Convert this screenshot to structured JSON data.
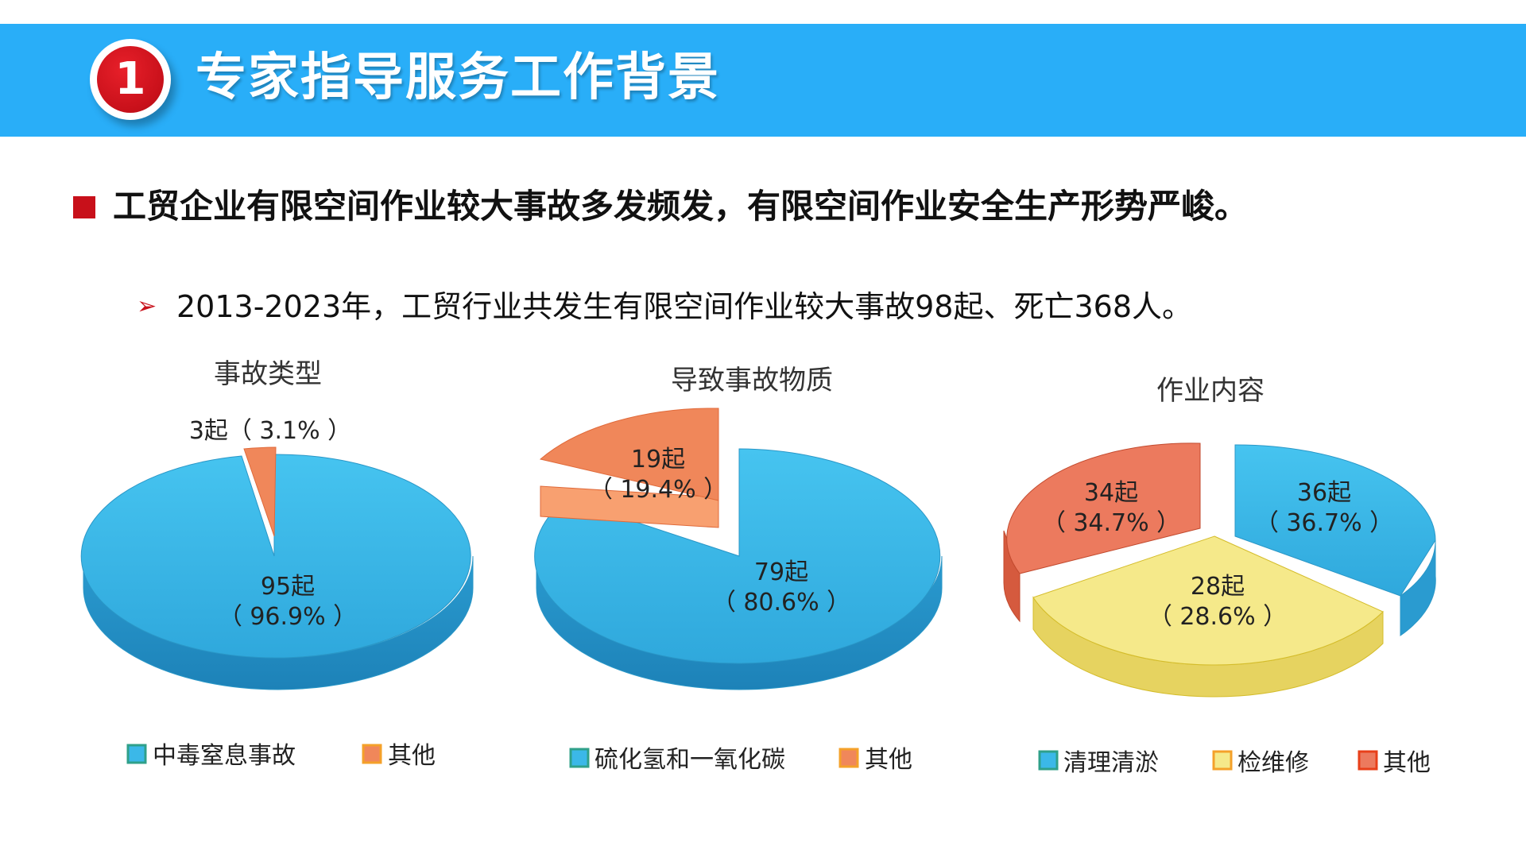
{
  "banner": {
    "number": "1",
    "title": "专家指导服务工作背景",
    "color": "#29aef8"
  },
  "headline": "工贸企业有限空间作业较大事故多发频发，有限空间作业安全生产形势严峻。",
  "subline": "2013-2023年，工贸行业共发生有限空间作业较大事故98起、死亡368人。",
  "chart_data": [
    {
      "type": "pie",
      "title": "事故类型",
      "legend_position": "bottom",
      "slices": [
        {
          "name": "中毒窒息事故",
          "value": 95,
          "label_count": "95起",
          "label_pct": "（ 96.9% ）",
          "color": "#3bb8e8"
        },
        {
          "name": "其他",
          "value": 3,
          "label_count": "3起（ 3.1% ）",
          "label_pct": "",
          "color": "#f0875a"
        }
      ]
    },
    {
      "type": "pie",
      "title": "导致事故物质",
      "legend_position": "bottom",
      "slices": [
        {
          "name": "硫化氢和一氧化碳",
          "value": 79,
          "label_count": "79起",
          "label_pct": "（ 80.6% ）",
          "color": "#3bb8e8"
        },
        {
          "name": "其他",
          "value": 19,
          "label_count": "19起",
          "label_pct": "（ 19.4% ）",
          "color": "#f0875a"
        }
      ]
    },
    {
      "type": "pie",
      "title": "作业内容",
      "legend_position": "bottom",
      "slices": [
        {
          "name": "清理清淤",
          "value": 36,
          "label_count": "36起",
          "label_pct": "（ 36.7% ）",
          "color": "#3bb8e8"
        },
        {
          "name": "检维修",
          "value": 28,
          "label_count": "28起",
          "label_pct": "（ 28.6% ）",
          "color": "#f5e98a"
        },
        {
          "name": "其他",
          "value": 34,
          "label_count": "34起",
          "label_pct": "（ 34.7% ）",
          "color": "#ec7a5e"
        }
      ]
    }
  ]
}
